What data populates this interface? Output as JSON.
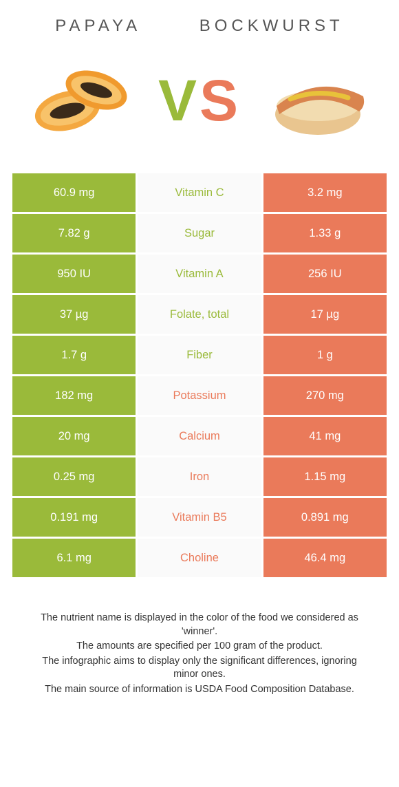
{
  "colors": {
    "left": "#9aba3a",
    "right": "#ea7a5a",
    "mid_bg": "#fafafa"
  },
  "left_name": "PAPAYA",
  "right_name": "BOCKWURST",
  "vs_v": "V",
  "vs_s": "S",
  "rows": [
    {
      "left": "60.9 mg",
      "nutrient": "Vitamin C",
      "right": "3.2 mg",
      "winner": "left"
    },
    {
      "left": "7.82 g",
      "nutrient": "Sugar",
      "right": "1.33 g",
      "winner": "left"
    },
    {
      "left": "950 IU",
      "nutrient": "Vitamin A",
      "right": "256 IU",
      "winner": "left"
    },
    {
      "left": "37 µg",
      "nutrient": "Folate, total",
      "right": "17 µg",
      "winner": "left"
    },
    {
      "left": "1.7 g",
      "nutrient": "Fiber",
      "right": "1 g",
      "winner": "left"
    },
    {
      "left": "182 mg",
      "nutrient": "Potassium",
      "right": "270 mg",
      "winner": "right"
    },
    {
      "left": "20 mg",
      "nutrient": "Calcium",
      "right": "41 mg",
      "winner": "right"
    },
    {
      "left": "0.25 mg",
      "nutrient": "Iron",
      "right": "1.15 mg",
      "winner": "right"
    },
    {
      "left": "0.191 mg",
      "nutrient": "Vitamin B5",
      "right": "0.891 mg",
      "winner": "right"
    },
    {
      "left": "6.1 mg",
      "nutrient": "Choline",
      "right": "46.4 mg",
      "winner": "right"
    }
  ],
  "footnotes": [
    "The nutrient name is displayed in the color of the food we considered as 'winner'.",
    "The amounts are specified per 100 gram of the product.",
    "The infographic aims to display only the significant differences, ignoring minor ones.",
    "The main source of information is USDA Food Composition Database."
  ]
}
